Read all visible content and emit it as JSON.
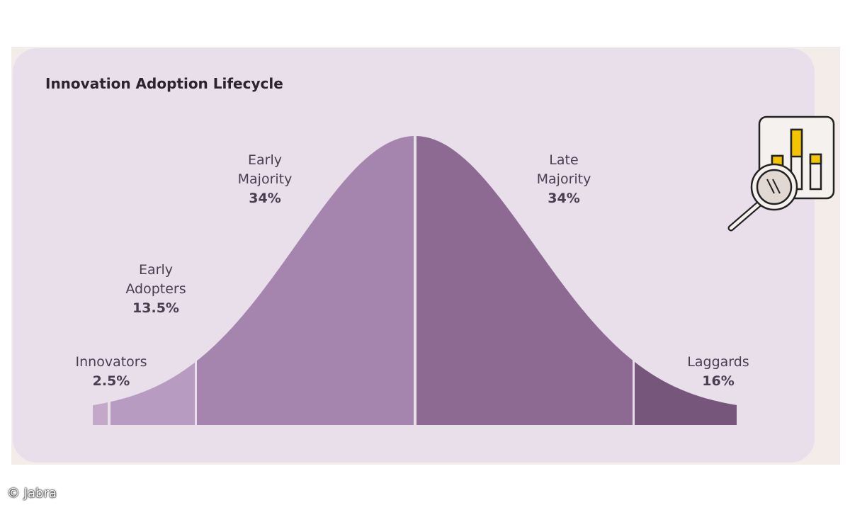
{
  "title": "Innovation Adoption Lifecycle",
  "credit": "© Jabra",
  "chart_data": {
    "type": "area",
    "shape": "normal distribution (bell curve)",
    "segments": [
      {
        "name": "Innovators",
        "value": "2.5%",
        "color": "#c4a8c9"
      },
      {
        "name": "Early Adopters",
        "line1": "Early",
        "line2": "Adopters",
        "value": "13.5%",
        "color": "#b89bc0"
      },
      {
        "name": "Early Majority",
        "line1": "Early",
        "line2": "Majority",
        "value": "34%",
        "color": "#a584ae"
      },
      {
        "name": "Late Majority",
        "line1": "Late",
        "line2": "Majority",
        "value": "34%",
        "color": "#8c6a91"
      },
      {
        "name": "Laggards",
        "value": "16%",
        "color": "#77567c"
      }
    ]
  },
  "icon": "chart-with-magnifier-icon",
  "colors": {
    "card": "#e8dfeb",
    "panel": "#f3ece8",
    "accent_yellow": "#f2c500"
  }
}
